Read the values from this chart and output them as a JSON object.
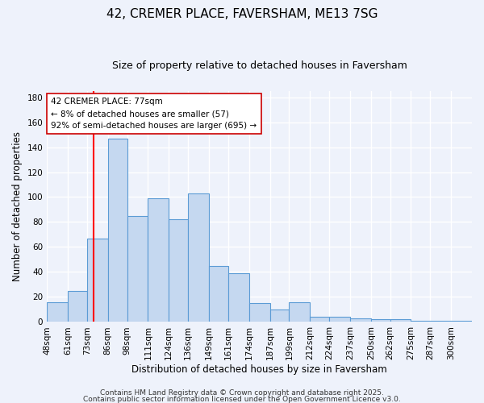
{
  "title": "42, CREMER PLACE, FAVERSHAM, ME13 7SG",
  "subtitle": "Size of property relative to detached houses in Faversham",
  "xlabel": "Distribution of detached houses by size in Faversham",
  "ylabel": "Number of detached properties",
  "bar_color": "#c5d8f0",
  "bar_edge_color": "#5b9bd5",
  "background_color": "#eef2fb",
  "grid_color": "#ffffff",
  "values": [
    16,
    25,
    67,
    147,
    85,
    99,
    82,
    103,
    45,
    39,
    15,
    10,
    16,
    4,
    4,
    3,
    2,
    2,
    1,
    1,
    1
  ],
  "red_line_x": 77,
  "bin_edges": [
    48,
    61,
    73,
    86,
    98,
    111,
    124,
    136,
    149,
    161,
    174,
    187,
    199,
    212,
    224,
    237,
    250,
    262,
    275,
    287,
    300,
    313
  ],
  "tick_labels": [
    "48sqm",
    "61sqm",
    "73sqm",
    "86sqm",
    "98sqm",
    "111sqm",
    "124sqm",
    "136sqm",
    "149sqm",
    "161sqm",
    "174sqm",
    "187sqm",
    "199sqm",
    "212sqm",
    "224sqm",
    "237sqm",
    "250sqm",
    "262sqm",
    "275sqm",
    "287sqm",
    "300sqm"
  ],
  "ylim": [
    0,
    185
  ],
  "yticks": [
    0,
    20,
    40,
    60,
    80,
    100,
    120,
    140,
    160,
    180
  ],
  "annotation_title": "42 CREMER PLACE: 77sqm",
  "annotation_line1": "← 8% of detached houses are smaller (57)",
  "annotation_line2": "92% of semi-detached houses are larger (695) →",
  "footer1": "Contains HM Land Registry data © Crown copyright and database right 2025.",
  "footer2": "Contains public sector information licensed under the Open Government Licence v3.0.",
  "title_fontsize": 11,
  "subtitle_fontsize": 9,
  "axis_label_fontsize": 8.5,
  "tick_fontsize": 7.5,
  "annotation_fontsize": 7.5,
  "footer_fontsize": 6.5
}
